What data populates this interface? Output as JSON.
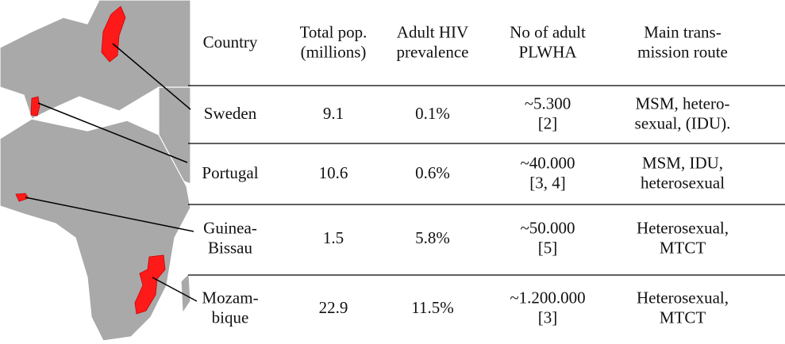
{
  "table": {
    "header": [
      [
        "Country"
      ],
      [
        "Total pop.",
        "(millions)"
      ],
      [
        "Adult HIV",
        "prevalence"
      ],
      [
        "No of adult",
        "PLWHA"
      ],
      [
        "Main trans-",
        "mission route"
      ]
    ],
    "rows": [
      [
        [
          "Sweden"
        ],
        [
          "9.1"
        ],
        [
          "0.1%"
        ],
        [
          "~5.300",
          "[2]"
        ],
        [
          "MSM, hetero-",
          "sexual, (IDU)."
        ]
      ],
      [
        [
          "Portugal"
        ],
        [
          "10.6"
        ],
        [
          "0.6%"
        ],
        [
          "~40.000",
          "[3, 4]"
        ],
        [
          "MSM, IDU,",
          "heterosexual"
        ]
      ],
      [
        [
          "Guinea-",
          "Bissau"
        ],
        [
          "1.5"
        ],
        [
          "5.8%"
        ],
        [
          "~50.000",
          "[5]"
        ],
        [
          "Heterosexual,",
          "MTCT"
        ]
      ],
      [
        [
          "Mozam-",
          "bique"
        ],
        [
          "22.9"
        ],
        [
          "11.5%"
        ],
        [
          "~1.200.000",
          "[3]"
        ],
        [
          "Heterosexual,",
          "MTCT"
        ]
      ]
    ]
  }
}
